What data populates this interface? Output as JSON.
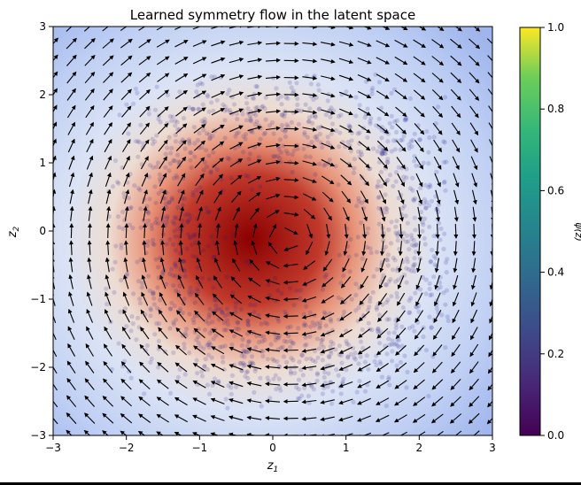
{
  "chart_data": {
    "type": "heatmap",
    "title": "Learned symmetry flow in the latent space",
    "xlabel": "z1",
    "ylabel": "z2",
    "xlim": [
      -3,
      3
    ],
    "ylim": [
      -3,
      3
    ],
    "x_ticks": [
      "−3",
      "−2",
      "−1",
      "0",
      "1",
      "2",
      "3"
    ],
    "y_ticks": [
      "−3",
      "−2",
      "−1",
      "0",
      "1",
      "2",
      "3"
    ],
    "colorbar": {
      "label": "ψ(z)",
      "range": [
        0.0,
        1.0
      ],
      "ticks": [
        "0.0",
        "0.2",
        "0.4",
        "0.6",
        "0.8",
        "1.0"
      ],
      "colormap": "viridis"
    },
    "background_field": {
      "description_colormap": "coolwarm",
      "center_value_color": "#8b0000",
      "edge_color": "#b9c9f2"
    },
    "vector_field": {
      "type": "rotation",
      "direction": "clockwise",
      "grid_spacing": 0.25,
      "center": [
        0.2,
        -0.1
      ]
    },
    "scatter": {
      "description": "latent samples",
      "color": "#1a1a8c",
      "extent_x": [
        -2.3,
        2.4
      ],
      "extent_y": [
        -2.6,
        2.3
      ]
    },
    "grid": false
  },
  "colors": {
    "viridis_top": "#fde725",
    "viridis_bottom": "#440154",
    "arrow": "#000000"
  }
}
